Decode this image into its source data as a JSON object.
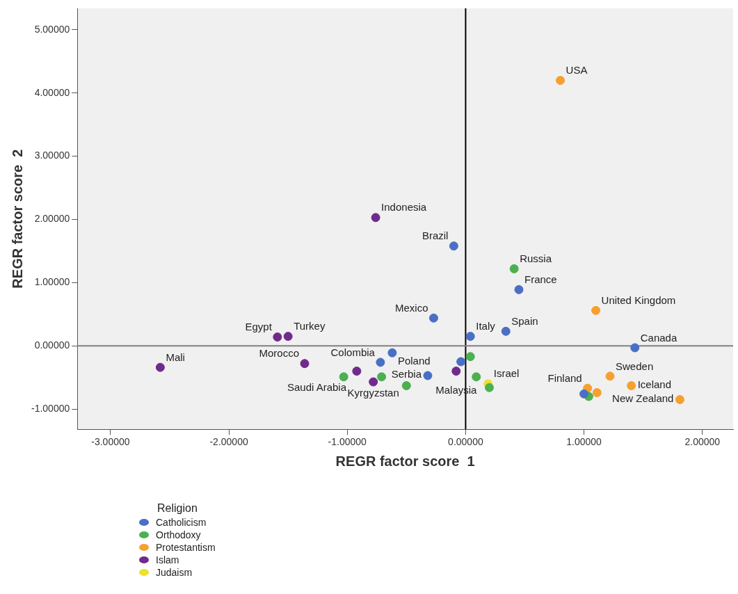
{
  "chart_data": {
    "type": "scatter",
    "xlabel": "REGR factor score  1",
    "ylabel": "REGR factor score  2",
    "legend_title": "Religion",
    "legend": "bottom left",
    "marker": "circle",
    "grid": false,
    "xlim": [
      -3.28,
      2.26
    ],
    "ylim": [
      -1.32,
      5.34
    ],
    "xticks": [
      {
        "value": -3,
        "label": "-3.00000"
      },
      {
        "value": -2,
        "label": "-2.00000"
      },
      {
        "value": -1,
        "label": "-1.00000"
      },
      {
        "value": 0,
        "label": "0.00000"
      },
      {
        "value": 1,
        "label": "1.00000"
      },
      {
        "value": 2,
        "label": "2.00000"
      }
    ],
    "yticks": [
      {
        "value": -1,
        "label": "-1.00000"
      },
      {
        "value": 0,
        "label": "0.00000"
      },
      {
        "value": 1,
        "label": "1.00000"
      },
      {
        "value": 2,
        "label": "2.00000"
      },
      {
        "value": 3,
        "label": "3.00000"
      },
      {
        "value": 4,
        "label": "4.00000"
      },
      {
        "value": 5,
        "label": "5.00000"
      }
    ],
    "series": [
      {
        "name": "Catholicism",
        "color": "#4a6fc4",
        "x": [
          -0.1,
          0.45,
          -0.27,
          0.04,
          0.34,
          1.43,
          -0.62,
          -0.72,
          -0.32,
          -0.04,
          1.0
        ],
        "values": [
          1.58,
          0.89,
          0.44,
          0.15,
          0.23,
          -0.03,
          -0.11,
          -0.26,
          -0.47,
          -0.25,
          -0.76
        ]
      },
      {
        "name": "Orthodoxy",
        "color": "#4caf50",
        "x": [
          0.41,
          0.04,
          0.09,
          0.2,
          -0.71,
          -1.03,
          -0.5,
          1.04
        ],
        "values": [
          1.22,
          -0.17,
          -0.49,
          -0.66,
          -0.49,
          -0.49,
          -0.63,
          -0.8
        ]
      },
      {
        "name": "Protestantism",
        "color": "#f5a030",
        "x": [
          0.8,
          1.1,
          1.22,
          1.4,
          1.03,
          1.11,
          1.81
        ],
        "values": [
          4.2,
          0.56,
          -0.48,
          -0.63,
          -0.67,
          -0.74,
          -0.85
        ]
      },
      {
        "name": "Islam",
        "color": "#702a8c",
        "x": [
          -0.76,
          -1.59,
          -1.5,
          -2.58,
          -1.36,
          -0.92,
          -0.78,
          -0.08
        ],
        "values": [
          2.03,
          0.14,
          0.15,
          -0.34,
          -0.28,
          -0.4,
          -0.57,
          -0.4
        ]
      },
      {
        "name": "Judaism",
        "color": "#f0e030",
        "x": [
          0.19
        ],
        "values": [
          -0.6
        ]
      }
    ],
    "ref_lines": [
      {
        "axis": "x",
        "value": 0,
        "color": "#000000"
      },
      {
        "axis": "y",
        "value": 0,
        "color": "#808080"
      }
    ],
    "annotations": [
      {
        "text": "USA",
        "x": 0.8,
        "y": 4.2
      },
      {
        "text": "Indonesia",
        "x": -0.76,
        "y": 2.03
      },
      {
        "text": "Brazil",
        "x": -0.1,
        "y": 1.58
      },
      {
        "text": "Russia",
        "x": 0.41,
        "y": 1.22
      },
      {
        "text": "France",
        "x": 0.45,
        "y": 0.89
      },
      {
        "text": "United Kingdom",
        "x": 1.1,
        "y": 0.56
      },
      {
        "text": "Mexico",
        "x": -0.27,
        "y": 0.44
      },
      {
        "text": "Italy",
        "x": 0.04,
        "y": 0.15
      },
      {
        "text": "Spain",
        "x": 0.34,
        "y": 0.23
      },
      {
        "text": "Canada",
        "x": 1.43,
        "y": -0.03
      },
      {
        "text": "Egypt",
        "x": -1.59,
        "y": 0.14
      },
      {
        "text": "Turkey",
        "x": -1.5,
        "y": 0.15
      },
      {
        "text": "Colombia",
        "x": -0.72,
        "y": -0.26
      },
      {
        "text": "Poland",
        "x": -0.62,
        "y": -0.11
      },
      {
        "text": "Morocco",
        "x": -1.36,
        "y": -0.28
      },
      {
        "text": "Mali",
        "x": -2.58,
        "y": -0.34
      },
      {
        "text": "Malaysia",
        "x": -0.08,
        "y": -0.4
      },
      {
        "text": "Saudi Arabia",
        "x": -0.92,
        "y": -0.4
      },
      {
        "text": "Kyrgyzstan",
        "x": -0.78,
        "y": -0.57
      },
      {
        "text": "Serbia",
        "x": -0.5,
        "y": -0.63
      },
      {
        "text": "Israel",
        "x": 0.19,
        "y": -0.6
      },
      {
        "text": "Sweden",
        "x": 1.22,
        "y": -0.48
      },
      {
        "text": "Iceland",
        "x": 1.4,
        "y": -0.63
      },
      {
        "text": "Finland",
        "x": 1.03,
        "y": -0.67
      },
      {
        "text": "New Zealand",
        "x": 1.81,
        "y": -0.85
      }
    ]
  }
}
